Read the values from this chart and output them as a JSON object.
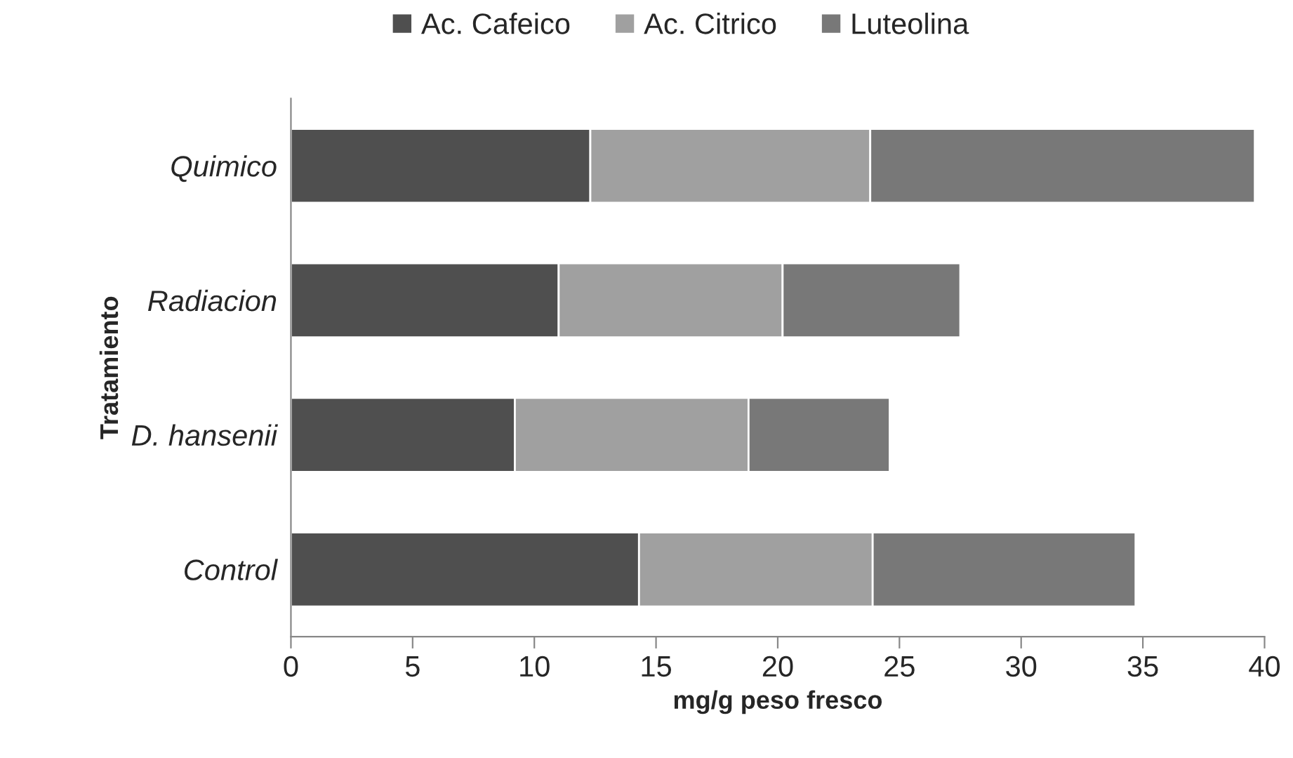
{
  "chart_data": {
    "type": "bar",
    "orientation": "horizontal",
    "stacked": true,
    "xlabel": "mg/g peso fresco",
    "ylabel": "Tratamiento",
    "categories": [
      "Quimico",
      "Radiacion",
      "D. hansenii",
      "Control"
    ],
    "series": [
      {
        "name": "Ac. Cafeico",
        "color": "#4f4f4f",
        "values": [
          12.3,
          11.0,
          9.2,
          14.3
        ]
      },
      {
        "name": "Ac. Citrico",
        "color": "#a0a0a0",
        "values": [
          11.5,
          9.2,
          9.6,
          9.6
        ]
      },
      {
        "name": "Luteolina",
        "color": "#787878",
        "values": [
          15.8,
          7.3,
          5.8,
          10.8
        ]
      }
    ],
    "xlim": [
      0,
      40
    ],
    "xticks": [
      0,
      5,
      10,
      15,
      20,
      25,
      30,
      35,
      40
    ],
    "legend": "top",
    "grid": false
  }
}
